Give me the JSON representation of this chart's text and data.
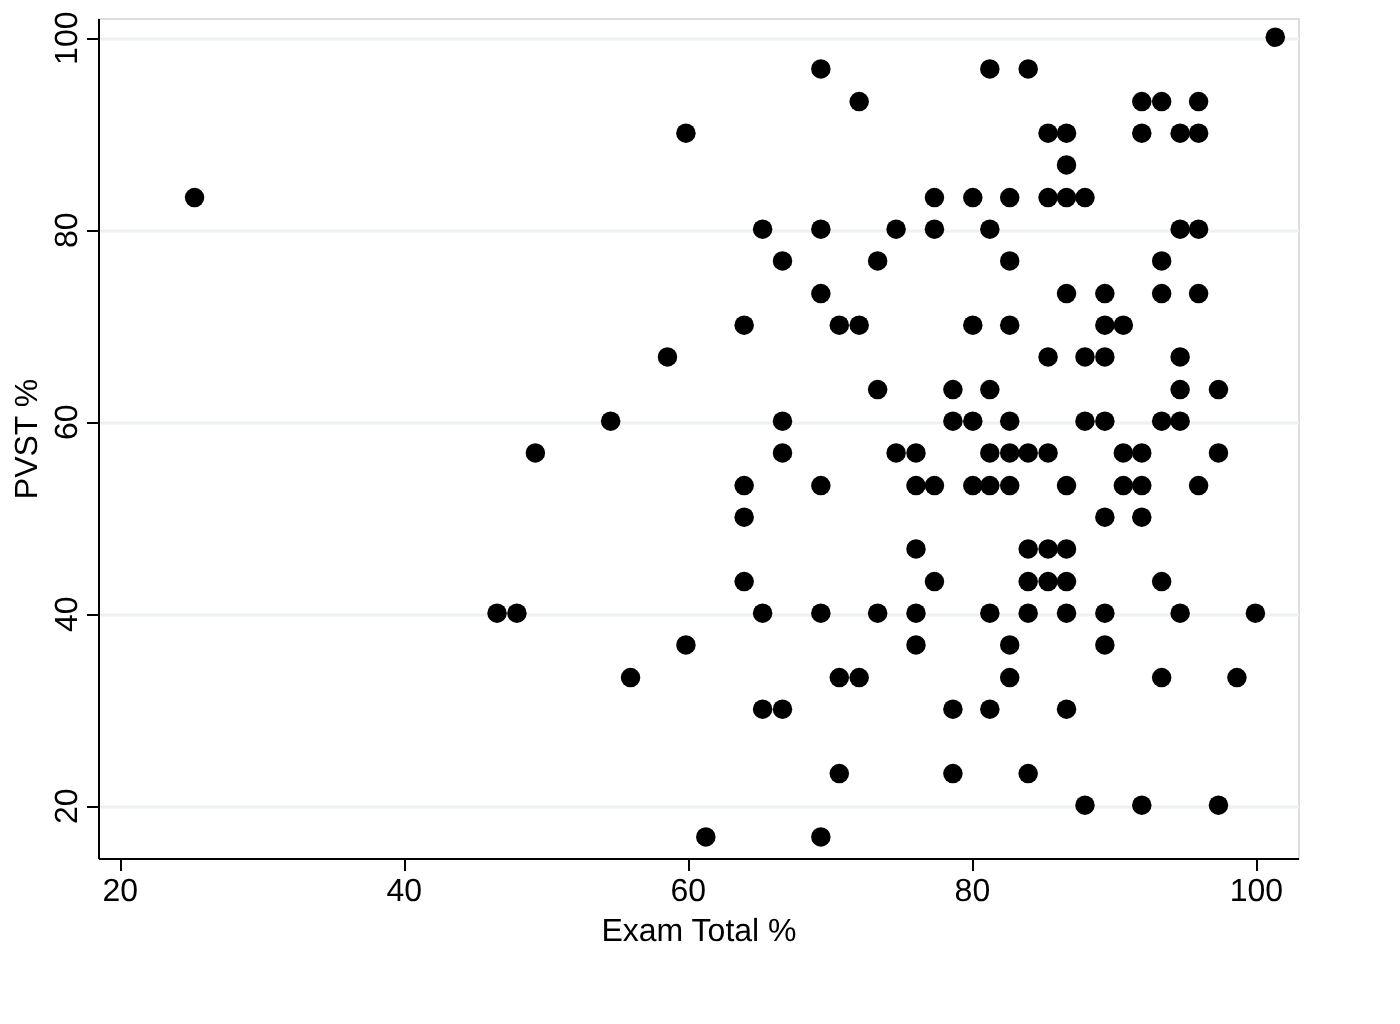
{
  "chart_data": {
    "type": "scatter",
    "xlabel": "Exam Total %",
    "ylabel": "PVST %",
    "xlim": [
      18.5,
      103
    ],
    "ylim": [
      14.5,
      102
    ],
    "xticks": [
      20,
      40,
      60,
      80,
      100
    ],
    "yticks": [
      20,
      40,
      60,
      80,
      100
    ],
    "grid": "y",
    "marker": "circle",
    "series": [
      {
        "color": "#000000",
        "x": [
          25.3,
          59.9,
          58.6,
          54.6,
          49.3,
          46.6,
          48.0,
          59.9,
          56.0,
          101.4,
          69.4,
          81.3,
          84.0,
          72.1,
          92.0,
          93.4,
          96.0,
          85.4,
          86.7,
          92.0,
          94.7,
          96.0,
          86.7,
          77.4,
          80.1,
          82.7,
          85.4,
          86.7,
          88.0,
          65.3,
          69.4,
          74.7,
          77.4,
          81.3,
          94.7,
          96.0,
          66.7,
          73.4,
          82.7,
          93.4,
          69.4,
          86.7,
          89.4,
          93.4,
          96.0,
          64.0,
          70.7,
          72.1,
          80.1,
          82.7,
          89.4,
          90.7,
          85.4,
          88.0,
          89.4,
          94.7,
          73.4,
          78.7,
          81.3,
          94.7,
          97.4,
          66.7,
          78.7,
          80.1,
          82.7,
          88.0,
          89.4,
          93.4,
          94.7,
          66.7,
          74.7,
          76.1,
          81.3,
          82.7,
          84.0,
          85.4,
          90.7,
          92.0,
          97.4,
          64.0,
          69.4,
          76.1,
          77.4,
          80.1,
          81.3,
          82.7,
          86.7,
          90.7,
          92.0,
          96.0,
          64.0,
          89.4,
          92.0,
          76.1,
          84.0,
          85.4,
          86.7,
          64.0,
          77.4,
          84.0,
          85.4,
          86.7,
          93.4,
          65.3,
          69.4,
          73.4,
          76.1,
          81.3,
          84.0,
          86.7,
          89.4,
          94.7,
          100.0,
          76.1,
          82.7,
          89.4,
          70.7,
          72.1,
          82.7,
          93.4,
          98.7,
          65.3,
          66.7,
          78.7,
          81.3,
          86.7,
          70.7,
          78.7,
          84.0,
          88.0,
          92.0,
          97.4,
          61.3,
          69.4
        ],
        "values": [
          83.3,
          90,
          66.7,
          60,
          56.7,
          40,
          40,
          36.7,
          33.3,
          100,
          96.7,
          96.7,
          96.7,
          93.3,
          93.3,
          93.3,
          93.3,
          90,
          90,
          90,
          90,
          90,
          86.7,
          83.3,
          83.3,
          83.3,
          83.3,
          83.3,
          83.3,
          80,
          80,
          80,
          80,
          80,
          80,
          80,
          76.7,
          76.7,
          76.7,
          76.7,
          73.3,
          73.3,
          73.3,
          73.3,
          73.3,
          70,
          70,
          70,
          70,
          70,
          70,
          70,
          66.7,
          66.7,
          66.7,
          66.7,
          63.3,
          63.3,
          63.3,
          63.3,
          63.3,
          60,
          60,
          60,
          60,
          60,
          60,
          60,
          60,
          56.7,
          56.7,
          56.7,
          56.7,
          56.7,
          56.7,
          56.7,
          56.7,
          56.7,
          56.7,
          53.3,
          53.3,
          53.3,
          53.3,
          53.3,
          53.3,
          53.3,
          53.3,
          53.3,
          53.3,
          53.3,
          50,
          50,
          50,
          46.7,
          46.7,
          46.7,
          46.7,
          43.3,
          43.3,
          43.3,
          43.3,
          43.3,
          43.3,
          40,
          40,
          40,
          40,
          40,
          40,
          40,
          40,
          40,
          40,
          36.7,
          36.7,
          36.7,
          33.3,
          33.3,
          33.3,
          33.3,
          33.3,
          30,
          30,
          30,
          30,
          30,
          23.3,
          23.3,
          23.3,
          20,
          20,
          20,
          16.7,
          16.7
        ]
      }
    ]
  }
}
